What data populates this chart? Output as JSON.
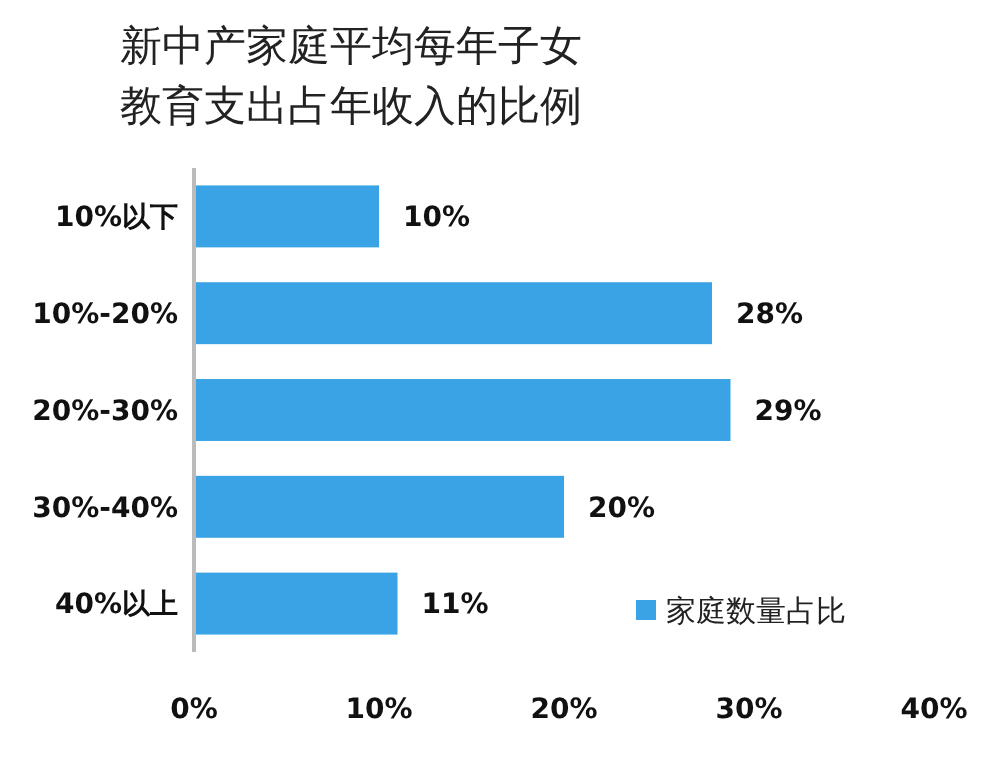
{
  "chart_data": {
    "type": "bar",
    "orientation": "horizontal",
    "title": "新中产家庭平均每年子女教育支出占年收入的比例",
    "categories": [
      "10%以下",
      "10%-20%",
      "20%-30%",
      "30%-40%",
      "40%以上"
    ],
    "series": [
      {
        "name": "家庭数量占比",
        "color": "#3aa3e6",
        "values": [
          10,
          28,
          29,
          20,
          11
        ]
      }
    ],
    "value_labels": [
      "10%",
      "28%",
      "29%",
      "20%",
      "11%"
    ],
    "xlim": [
      0,
      40
    ],
    "xticks": [
      {
        "value": 0,
        "label": "0%"
      },
      {
        "value": 10,
        "label": "10%"
      },
      {
        "value": 20,
        "label": "20%"
      },
      {
        "value": 30,
        "label": "30%"
      },
      {
        "value": 40,
        "label": "40%"
      }
    ],
    "grid": false,
    "legend": "bottom right"
  }
}
